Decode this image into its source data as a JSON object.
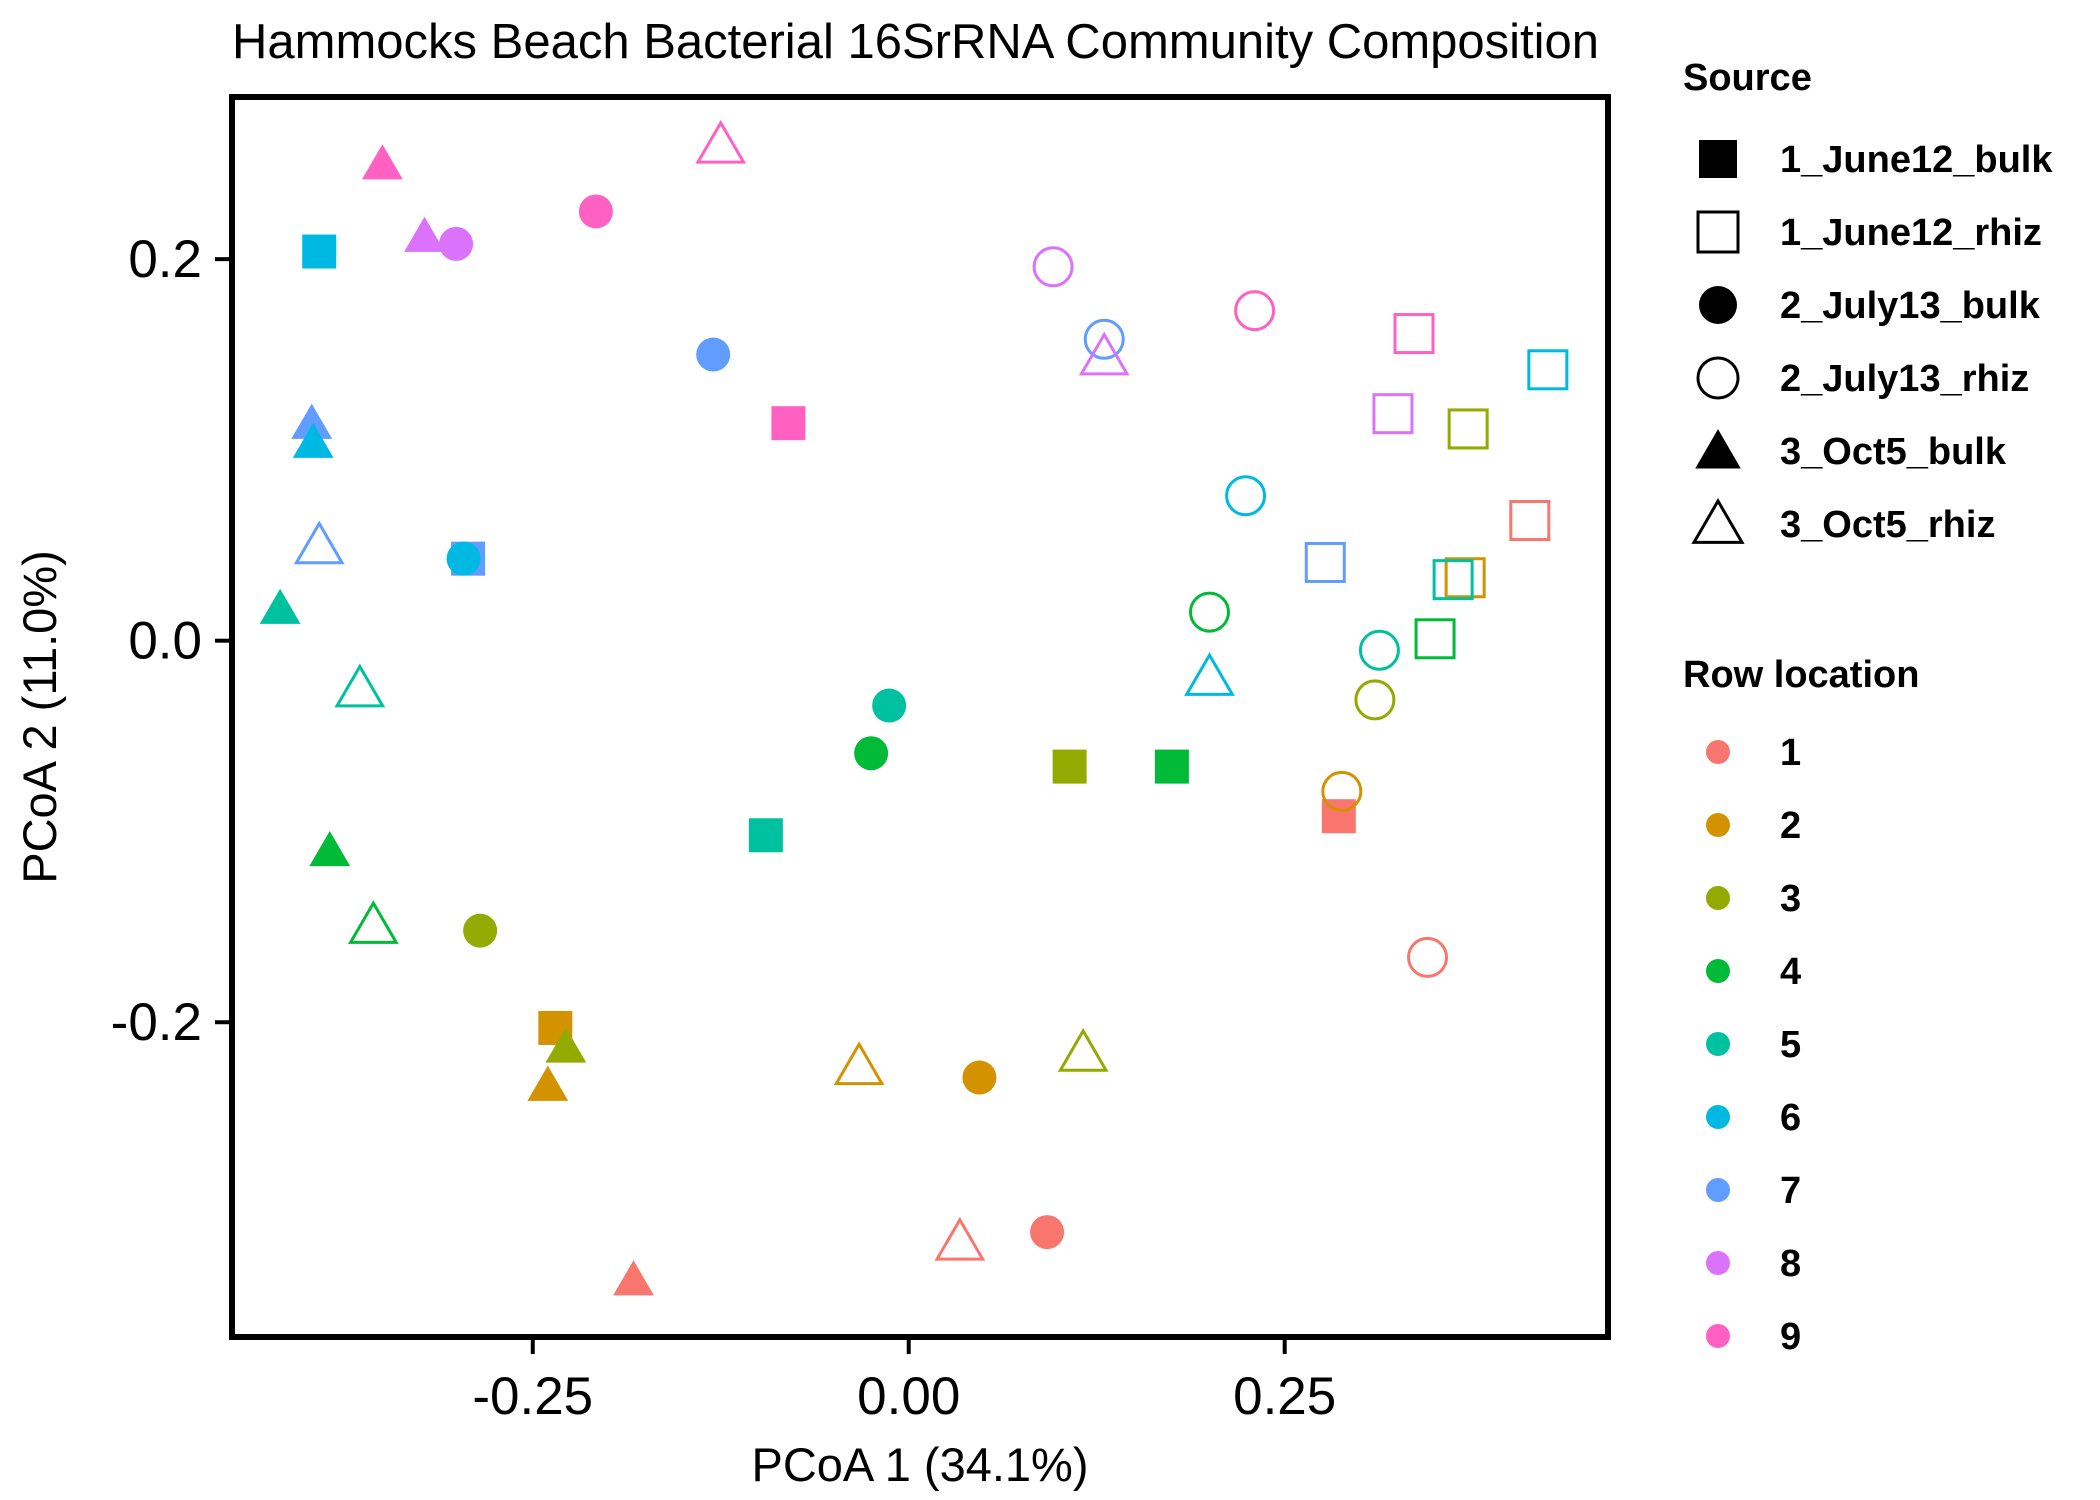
{
  "chart_data": {
    "type": "scatter",
    "title": "Hammocks Beach Bacterial 16SrRNA Community Composition",
    "xlabel": "PCoA 1 (34.1%)",
    "ylabel": "PCoA 2 (11.0%)",
    "xlim": [
      -0.45,
      0.465
    ],
    "ylim": [
      -0.365,
      0.285
    ],
    "x_ticks": [
      -0.25,
      0.0,
      0.25
    ],
    "x_tick_labels": [
      "-0.25",
      "0.00",
      "0.25"
    ],
    "y_ticks": [
      -0.2,
      0.0,
      0.2
    ],
    "y_tick_labels": [
      "-0.2",
      "0.0",
      "0.2"
    ],
    "grid": false,
    "legend_placement": "right",
    "legends": {
      "source": {
        "title": "Source",
        "entries": [
          {
            "label": "1_June12_bulk",
            "shape": "square",
            "filled": true
          },
          {
            "label": "1_June12_rhiz",
            "shape": "square",
            "filled": false
          },
          {
            "label": "2_July13_bulk",
            "shape": "circle",
            "filled": true
          },
          {
            "label": "2_July13_rhiz",
            "shape": "circle",
            "filled": false
          },
          {
            "label": "3_Oct5_bulk",
            "shape": "triangle",
            "filled": true
          },
          {
            "label": "3_Oct5_rhiz",
            "shape": "triangle",
            "filled": false
          }
        ]
      },
      "row": {
        "title": "Row location",
        "entries": [
          {
            "label": "1",
            "color": "#F8766D"
          },
          {
            "label": "2",
            "color": "#D39200"
          },
          {
            "label": "3",
            "color": "#93AA00"
          },
          {
            "label": "4",
            "color": "#00BA38"
          },
          {
            "label": "5",
            "color": "#00C19F"
          },
          {
            "label": "6",
            "color": "#00B9E3"
          },
          {
            "label": "7",
            "color": "#619CFF"
          },
          {
            "label": "8",
            "color": "#DB72FB"
          },
          {
            "label": "9",
            "color": "#FF61C3"
          }
        ]
      }
    },
    "points": [
      {
        "x": -0.392,
        "y": 0.204,
        "source": "1_June12_bulk",
        "row": "6"
      },
      {
        "x": -0.293,
        "y": 0.043,
        "source": "1_June12_bulk",
        "row": "7"
      },
      {
        "x": -0.08,
        "y": 0.114,
        "source": "1_June12_bulk",
        "row": "9"
      },
      {
        "x": -0.095,
        "y": -0.102,
        "source": "1_June12_bulk",
        "row": "5"
      },
      {
        "x": 0.107,
        "y": -0.066,
        "source": "1_June12_bulk",
        "row": "3"
      },
      {
        "x": 0.175,
        "y": -0.066,
        "source": "1_June12_bulk",
        "row": "4"
      },
      {
        "x": 0.286,
        "y": -0.092,
        "source": "1_June12_bulk",
        "row": "1"
      },
      {
        "x": -0.235,
        "y": -0.203,
        "source": "1_June12_bulk",
        "row": "2"
      },
      {
        "x": 0.336,
        "y": 0.161,
        "source": "1_June12_rhiz",
        "row": "9"
      },
      {
        "x": 0.322,
        "y": 0.119,
        "source": "1_June12_rhiz",
        "row": "8"
      },
      {
        "x": 0.372,
        "y": 0.111,
        "source": "1_June12_rhiz",
        "row": "3"
      },
      {
        "x": 0.425,
        "y": 0.142,
        "source": "1_June12_rhiz",
        "row": "6"
      },
      {
        "x": 0.413,
        "y": 0.063,
        "source": "1_June12_rhiz",
        "row": "1"
      },
      {
        "x": 0.277,
        "y": 0.041,
        "source": "1_June12_rhiz",
        "row": "7"
      },
      {
        "x": 0.37,
        "y": 0.033,
        "source": "1_June12_rhiz",
        "row": "2"
      },
      {
        "x": 0.362,
        "y": 0.032,
        "source": "1_June12_rhiz",
        "row": "5"
      },
      {
        "x": 0.35,
        "y": 0.001,
        "source": "1_June12_rhiz",
        "row": "4"
      },
      {
        "x": -0.301,
        "y": 0.208,
        "source": "2_July13_bulk",
        "row": "8"
      },
      {
        "x": -0.208,
        "y": 0.225,
        "source": "2_July13_bulk",
        "row": "9"
      },
      {
        "x": -0.13,
        "y": 0.15,
        "source": "2_July13_bulk",
        "row": "7"
      },
      {
        "x": -0.296,
        "y": 0.043,
        "source": "2_July13_bulk",
        "row": "6"
      },
      {
        "x": -0.013,
        "y": -0.034,
        "source": "2_July13_bulk",
        "row": "5"
      },
      {
        "x": -0.025,
        "y": -0.059,
        "source": "2_July13_bulk",
        "row": "4"
      },
      {
        "x": -0.285,
        "y": -0.152,
        "source": "2_July13_bulk",
        "row": "3"
      },
      {
        "x": 0.047,
        "y": -0.229,
        "source": "2_July13_bulk",
        "row": "2"
      },
      {
        "x": 0.092,
        "y": -0.31,
        "source": "2_July13_bulk",
        "row": "1"
      },
      {
        "x": 0.096,
        "y": 0.196,
        "source": "2_July13_rhiz",
        "row": "8"
      },
      {
        "x": 0.13,
        "y": 0.158,
        "source": "2_July13_rhiz",
        "row": "7"
      },
      {
        "x": 0.23,
        "y": 0.173,
        "source": "2_July13_rhiz",
        "row": "9"
      },
      {
        "x": 0.224,
        "y": 0.076,
        "source": "2_July13_rhiz",
        "row": "6"
      },
      {
        "x": 0.2,
        "y": 0.015,
        "source": "2_July13_rhiz",
        "row": "4"
      },
      {
        "x": 0.313,
        "y": -0.005,
        "source": "2_July13_rhiz",
        "row": "5"
      },
      {
        "x": 0.31,
        "y": -0.031,
        "source": "2_July13_rhiz",
        "row": "3"
      },
      {
        "x": 0.288,
        "y": -0.079,
        "source": "2_July13_rhiz",
        "row": "2"
      },
      {
        "x": 0.345,
        "y": -0.166,
        "source": "2_July13_rhiz",
        "row": "1"
      },
      {
        "x": -0.35,
        "y": 0.25,
        "source": "3_Oct5_bulk",
        "row": "9"
      },
      {
        "x": -0.322,
        "y": 0.212,
        "source": "3_Oct5_bulk",
        "row": "8"
      },
      {
        "x": -0.397,
        "y": 0.114,
        "source": "3_Oct5_bulk",
        "row": "7"
      },
      {
        "x": -0.396,
        "y": 0.104,
        "source": "3_Oct5_bulk",
        "row": "6"
      },
      {
        "x": -0.418,
        "y": 0.017,
        "source": "3_Oct5_bulk",
        "row": "5"
      },
      {
        "x": -0.385,
        "y": -0.11,
        "source": "3_Oct5_bulk",
        "row": "4"
      },
      {
        "x": -0.228,
        "y": -0.213,
        "source": "3_Oct5_bulk",
        "row": "3"
      },
      {
        "x": -0.24,
        "y": -0.233,
        "source": "3_Oct5_bulk",
        "row": "2"
      },
      {
        "x": -0.183,
        "y": -0.335,
        "source": "3_Oct5_bulk",
        "row": "1"
      },
      {
        "x": -0.125,
        "y": 0.26,
        "source": "3_Oct5_rhiz",
        "row": "9"
      },
      {
        "x": 0.13,
        "y": 0.149,
        "source": "3_Oct5_rhiz",
        "row": "8"
      },
      {
        "x": -0.392,
        "y": 0.05,
        "source": "3_Oct5_rhiz",
        "row": "7"
      },
      {
        "x": -0.365,
        "y": -0.025,
        "source": "3_Oct5_rhiz",
        "row": "5"
      },
      {
        "x": 0.2,
        "y": -0.019,
        "source": "3_Oct5_rhiz",
        "row": "6"
      },
      {
        "x": -0.356,
        "y": -0.149,
        "source": "3_Oct5_rhiz",
        "row": "4"
      },
      {
        "x": -0.033,
        "y": -0.223,
        "source": "3_Oct5_rhiz",
        "row": "2"
      },
      {
        "x": 0.116,
        "y": -0.216,
        "source": "3_Oct5_rhiz",
        "row": "3"
      },
      {
        "x": 0.034,
        "y": -0.315,
        "source": "3_Oct5_rhiz",
        "row": "1"
      }
    ]
  }
}
